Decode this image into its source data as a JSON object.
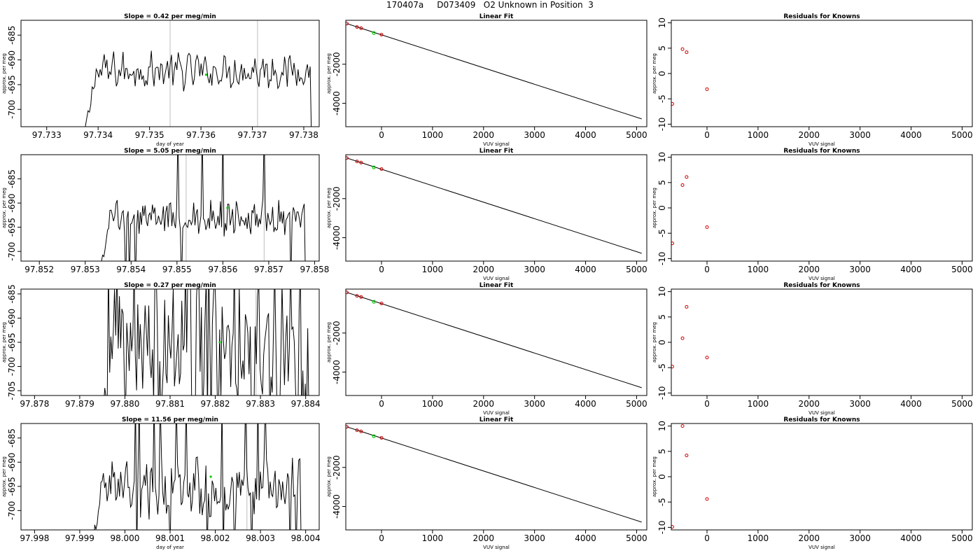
{
  "figure_title": "170407a     D073409   O2 Unknown in Position  3",
  "colors": {
    "trace": "#000000",
    "known_point": "#cc0000",
    "unknown_point": "#00cc00",
    "event_line": "#c8c8c8"
  },
  "chart_data": [
    {
      "type": "line",
      "row": 1,
      "col": 1,
      "title": "Slope =  0.42  per meg/min",
      "xlabel": "day of year",
      "ylabel": "approx. per meg",
      "xlim": [
        97.7325,
        97.7383
      ],
      "ylim": [
        -703.5,
        -682
      ],
      "xticks": [
        "97.733",
        "97.734",
        "97.735",
        "97.736",
        "97.737",
        "97.738"
      ],
      "yticks": [
        -685,
        -690,
        -695,
        -700
      ],
      "event_lines_x": [
        97.7354,
        97.7371
      ],
      "unknown_point": {
        "x": 97.7361,
        "y": -693.0
      },
      "trace": {
        "x_start": 97.7337,
        "x_end": 97.73815,
        "baseline": -692.2,
        "amplitude": 3,
        "spikes": 0
      }
    },
    {
      "type": "scatter",
      "row": 1,
      "col": 2,
      "title": "Linear Fit",
      "xlabel": "VUV signal",
      "ylabel": "approx. per meg",
      "xlim": [
        -700,
        5200
      ],
      "ylim": [
        -5200,
        250
      ],
      "xticks": [
        0,
        1000,
        2000,
        3000,
        4000,
        5000
      ],
      "yticks": [
        -2000,
        -4000
      ],
      "fit_line": {
        "x": [
          -680,
          5100
        ],
        "y": [
          80,
          -4800
        ]
      },
      "knowns": {
        "x": [
          -680,
          -480,
          -400,
          0
        ],
        "y": [
          80,
          -95,
          -155,
          -485
        ]
      },
      "unknown": {
        "x": -150,
        "y": -400
      }
    },
    {
      "type": "scatter",
      "row": 1,
      "col": 3,
      "title": "Residuals for Knowns",
      "xlabel": "VUV signal",
      "ylabel": "approx. per meg",
      "xlim": [
        -700,
        5200
      ],
      "ylim": [
        -10.5,
        10.5
      ],
      "xticks": [
        0,
        1000,
        2000,
        3000,
        4000,
        5000
      ],
      "yticks": [
        10,
        5,
        0,
        -5,
        -10
      ],
      "residuals": {
        "x": [
          -680,
          -480,
          -400,
          0
        ],
        "y": [
          -6.0,
          4.8,
          4.2,
          -3.1
        ]
      }
    },
    {
      "type": "line",
      "row": 2,
      "col": 1,
      "title": "Slope =  5.05  per meg/min",
      "xlabel": "",
      "ylabel": "approx. per meg",
      "xlim": [
        97.8516,
        97.8581
      ],
      "ylim": [
        -702,
        -680
      ],
      "xticks": [
        "97.852",
        "97.853",
        "97.854",
        "97.855",
        "97.856",
        "97.857",
        "97.858"
      ],
      "yticks": [
        -685,
        -690,
        -695,
        -700
      ],
      "event_lines_x": [
        97.8552,
        97.8569
      ],
      "unknown_point": {
        "x": 97.8561,
        "y": -691.0
      },
      "trace": {
        "x_start": 97.8533,
        "x_end": 97.8578,
        "baseline": -693.0,
        "amplitude": 3,
        "spikes": 8
      }
    },
    {
      "type": "scatter",
      "row": 2,
      "col": 2,
      "title": "Linear Fit",
      "xlabel": "VUV signal",
      "ylabel": "approx. per meg",
      "xlim": [
        -700,
        5200
      ],
      "ylim": [
        -5200,
        250
      ],
      "xticks": [
        0,
        1000,
        2000,
        3000,
        4000,
        5000
      ],
      "yticks": [
        -2000,
        -4000
      ],
      "fit_line": {
        "x": [
          -680,
          5100
        ],
        "y": [
          80,
          -4800
        ]
      },
      "knowns": {
        "x": [
          -680,
          -480,
          -400,
          0
        ],
        "y": [
          80,
          -95,
          -155,
          -485
        ]
      },
      "unknown": {
        "x": -150,
        "y": -400
      }
    },
    {
      "type": "scatter",
      "row": 2,
      "col": 3,
      "title": "Residuals for Knowns",
      "xlabel": "VUV signal",
      "ylabel": "approx. per meg",
      "xlim": [
        -700,
        5200
      ],
      "ylim": [
        -10.5,
        10.5
      ],
      "xticks": [
        0,
        1000,
        2000,
        3000,
        4000,
        5000
      ],
      "yticks": [
        10,
        5,
        0,
        -5,
        -10
      ],
      "residuals": {
        "x": [
          -680,
          -480,
          -400,
          0
        ],
        "y": [
          -7.0,
          4.5,
          6.1,
          -3.8
        ]
      }
    },
    {
      "type": "line",
      "row": 3,
      "col": 1,
      "title": "Slope =  0.27  per meg/min",
      "xlabel": "",
      "ylabel": "approx. per meg",
      "xlim": [
        97.8777,
        97.8843
      ],
      "ylim": [
        -706,
        -684
      ],
      "xticks": [
        "97.878",
        "97.879",
        "97.880",
        "97.881",
        "97.882",
        "97.883",
        "97.884"
      ],
      "yticks": [
        -685,
        -690,
        -695,
        -700,
        -705
      ],
      "event_lines_x": [
        97.8829
      ],
      "unknown_point": {
        "x": 97.8821,
        "y": -695.0
      },
      "trace": {
        "x_start": 97.8795,
        "x_end": 97.8841,
        "baseline": -696.0,
        "amplitude": 12,
        "spikes": 30
      }
    },
    {
      "type": "scatter",
      "row": 3,
      "col": 2,
      "title": "Linear Fit",
      "xlabel": "VUV signal",
      "ylabel": "approx. per meg",
      "xlim": [
        -700,
        5200
      ],
      "ylim": [
        -5200,
        250
      ],
      "xticks": [
        0,
        1000,
        2000,
        3000,
        4000,
        5000
      ],
      "yticks": [
        -2000,
        -4000
      ],
      "fit_line": {
        "x": [
          -680,
          5100
        ],
        "y": [
          80,
          -4800
        ]
      },
      "knowns": {
        "x": [
          -680,
          -480,
          -400,
          0
        ],
        "y": [
          80,
          -95,
          -155,
          -485
        ]
      },
      "unknown": {
        "x": -150,
        "y": -400
      }
    },
    {
      "type": "scatter",
      "row": 3,
      "col": 3,
      "title": "Residuals for Knowns",
      "xlabel": "VUV signal",
      "ylabel": "approx. per meg",
      "xlim": [
        -700,
        5200
      ],
      "ylim": [
        -10.5,
        10.5
      ],
      "xticks": [
        0,
        1000,
        2000,
        3000,
        4000,
        5000
      ],
      "yticks": [
        10,
        5,
        0,
        -5,
        -10
      ],
      "residuals": {
        "x": [
          -680,
          -480,
          -400,
          0
        ],
        "y": [
          -4.8,
          0.8,
          7.0,
          -3.0
        ]
      }
    },
    {
      "type": "line",
      "row": 4,
      "col": 1,
      "title": "Slope =  11.56  per meg/min",
      "xlabel": "day of year",
      "ylabel": "approx. per meg",
      "xlim": [
        97.9977,
        98.0043
      ],
      "ylim": [
        -704,
        -682
      ],
      "xticks": [
        "97.998",
        "97.999",
        "98.000",
        "98.001",
        "98.002",
        "98.003",
        "98.004"
      ],
      "yticks": [
        -685,
        -690,
        -695,
        -700
      ],
      "event_lines_x": [
        98.0027
      ],
      "unknown_point": {
        "x": 98.0019,
        "y": -693.0
      },
      "trace": {
        "x_start": 97.99925,
        "x_end": 98.0039,
        "baseline": -695.0,
        "amplitude": 5,
        "spikes": 18
      }
    },
    {
      "type": "scatter",
      "row": 4,
      "col": 2,
      "title": "Linear Fit",
      "xlabel": "VUV signal",
      "ylabel": "approx. per meg",
      "xlim": [
        -700,
        5200
      ],
      "ylim": [
        -5200,
        250
      ],
      "xticks": [
        0,
        1000,
        2000,
        3000,
        4000,
        5000
      ],
      "yticks": [
        -2000,
        -4000
      ],
      "fit_line": {
        "x": [
          -680,
          5100
        ],
        "y": [
          80,
          -4800
        ]
      },
      "knowns": {
        "x": [
          -680,
          -480,
          -400,
          0
        ],
        "y": [
          80,
          -95,
          -155,
          -485
        ]
      },
      "unknown": {
        "x": -150,
        "y": -400
      }
    },
    {
      "type": "scatter",
      "row": 4,
      "col": 3,
      "title": "Residuals for Knowns",
      "xlabel": "VUV signal",
      "ylabel": "approx. per meg",
      "xlim": [
        -700,
        5200
      ],
      "ylim": [
        -10.5,
        10.5
      ],
      "xticks": [
        0,
        1000,
        2000,
        3000,
        4000,
        5000
      ],
      "yticks": [
        10,
        5,
        0,
        -5,
        -10
      ],
      "residuals": {
        "x": [
          -680,
          -480,
          -400,
          0
        ],
        "y": [
          -9.9,
          10.0,
          4.2,
          -4.4
        ]
      }
    }
  ]
}
